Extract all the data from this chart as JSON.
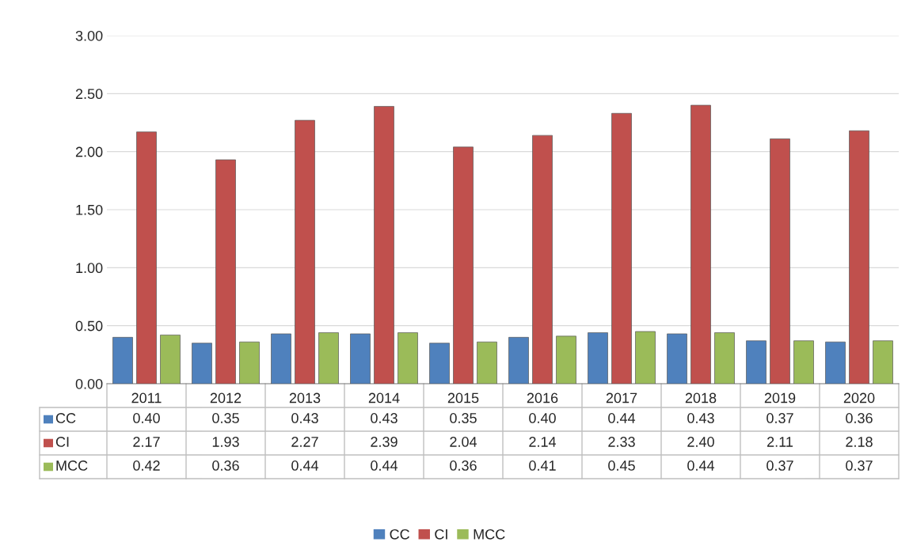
{
  "chart_data": {
    "type": "bar",
    "categories": [
      "2011",
      "2012",
      "2013",
      "2014",
      "2015",
      "2016",
      "2017",
      "2018",
      "2019",
      "2020"
    ],
    "series": [
      {
        "name": "CC",
        "color": "#4f81bd",
        "values": [
          0.4,
          0.35,
          0.43,
          0.43,
          0.35,
          0.4,
          0.44,
          0.43,
          0.37,
          0.36
        ],
        "value_labels": [
          "0.40",
          "0.35",
          "0.43",
          "0.43",
          "0.35",
          "0.40",
          "0.44",
          "0.43",
          "0.37",
          "0.36"
        ]
      },
      {
        "name": "CI",
        "color": "#c0504d",
        "values": [
          2.17,
          1.93,
          2.27,
          2.39,
          2.04,
          2.14,
          2.33,
          2.4,
          2.11,
          2.18
        ],
        "value_labels": [
          "2.17",
          "1.93",
          "2.27",
          "2.39",
          "2.04",
          "2.14",
          "2.33",
          "2.40",
          "2.11",
          "2.18"
        ]
      },
      {
        "name": "MCC",
        "color": "#9bbb59",
        "values": [
          0.42,
          0.36,
          0.44,
          0.44,
          0.36,
          0.41,
          0.45,
          0.44,
          0.37,
          0.37
        ],
        "value_labels": [
          "0.42",
          "0.36",
          "0.44",
          "0.44",
          "0.36",
          "0.41",
          "0.45",
          "0.44",
          "0.37",
          "0.37"
        ]
      }
    ],
    "ylim": [
      0,
      3
    ],
    "yticks": [
      {
        "value": 0,
        "label": "0.00"
      },
      {
        "value": 0.5,
        "label": "0.50"
      },
      {
        "value": 1,
        "label": "1.00"
      },
      {
        "value": 1.5,
        "label": "1.50"
      },
      {
        "value": 2,
        "label": "2.00"
      },
      {
        "value": 2.5,
        "label": "2.50"
      },
      {
        "value": 3,
        "label": "3.00"
      }
    ],
    "grid": "y",
    "legend": "bottom"
  }
}
